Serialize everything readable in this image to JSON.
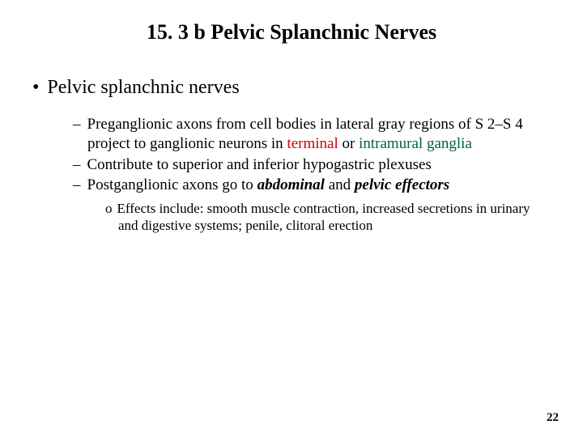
{
  "title": "15. 3 b Pelvic Splanchnic Nerves",
  "main_bullet": {
    "marker": "•",
    "text": "Pelvic splanchnic nerves"
  },
  "sub_bullets": [
    {
      "marker": "–",
      "pre_text": "Preganglionic axons from cell bodies in lateral gray regions of S 2–S 4 project to ganglionic neurons in ",
      "colored1": "terminal",
      "mid_text": " or ",
      "colored2": "intramural ganglia",
      "post_text": ""
    },
    {
      "marker": "–",
      "text": "Contribute to  superior and inferior hypogastric plexuses"
    },
    {
      "marker": "–",
      "pre_text": "Postganglionic axons go to ",
      "bold1": "abdominal",
      "mid_text": " and ",
      "bold2": "pelvic effectors",
      "post_text": ""
    }
  ],
  "sub_sub_bullet": {
    "marker": "o",
    "lead": "Effects include: ",
    "text": "smooth muscle contraction, increased secretions in urinary and digestive systems; penile, clitoral erection"
  },
  "page_number": "22",
  "colors": {
    "terminal": "#cc0000",
    "intramural": "#006633",
    "background": "#ffffff",
    "text": "#000000"
  }
}
